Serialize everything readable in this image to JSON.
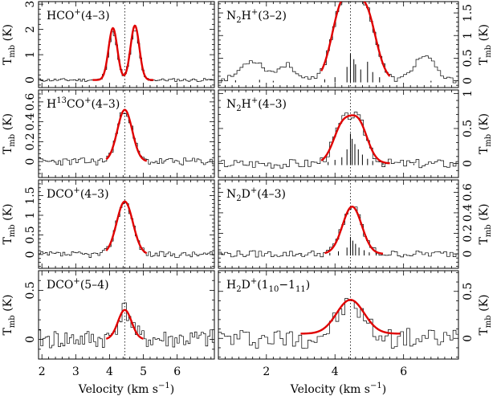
{
  "chart_data": {
    "type": "line",
    "xlabel": "Velocity (km s",
    "xlabel_sup": "−1",
    "xlabel_close": ")",
    "ylabel_main": "T",
    "ylabel_sub": "mb",
    "ylabel_unit": " (K)",
    "systemic_velocity": 4.45,
    "columns": [
      {
        "xlim": [
          1.9,
          7.1
        ],
        "xticks": [
          2,
          3,
          4,
          5,
          6
        ],
        "panels": [
          {
            "id": "hco-4-3",
            "label": {
              "base": "HCO",
              "sup": "+",
              "rest": "(4–3)"
            },
            "ylim": [
              -0.3,
              3.1
            ],
            "yticks": [
              0,
              1,
              2,
              3
            ],
            "y_label_side": "left",
            "fit": {
              "components": [
                [
                  2.05,
                  4.1,
                  0.13
                ],
                [
                  2.15,
                  4.75,
                  0.13
                ]
              ],
              "x_range": [
                3.5,
                5.3
              ]
            },
            "noise": 0.06,
            "seed": 11,
            "hyperfine": []
          },
          {
            "id": "h13co-4-3",
            "label": {
              "base": "H",
              "presup": "13",
              "mid": "CO",
              "sup": "+",
              "rest": "(4–3)"
            },
            "ylim": [
              -0.16,
              0.72
            ],
            "yticks": [
              0,
              0.2,
              0.4,
              0.6
            ],
            "y_label_side": "left",
            "fit": {
              "components": [
                [
                  0.52,
                  4.45,
                  0.22
                ]
              ],
              "x_range": [
                3.9,
                5.1
              ]
            },
            "noise": 0.035,
            "seed": 23,
            "hyperfine": []
          },
          {
            "id": "dco-4-3",
            "label": {
              "base": "DCO",
              "sup": "+",
              "rest": "(4–3)"
            },
            "ylim": [
              -0.35,
              1.9
            ],
            "yticks": [
              0,
              0.5,
              1,
              1.5
            ],
            "y_label_side": "left",
            "fit": {
              "components": [
                [
                  1.35,
                  4.45,
                  0.24
                ]
              ],
              "x_range": [
                3.9,
                5.1
              ]
            },
            "noise": 0.07,
            "seed": 37,
            "hyperfine": []
          },
          {
            "id": "dco-5-4",
            "label": {
              "base": "DCO",
              "sup": "+",
              "rest": "(5–4)"
            },
            "ylim": [
              -0.2,
              0.7
            ],
            "yticks": [
              0,
              0.5
            ],
            "y_label_side": "left",
            "fit": {
              "components": [
                [
                  0.3,
                  4.45,
                  0.2
                ]
              ],
              "x_range": [
                3.9,
                5.0
              ]
            },
            "noise": 0.09,
            "seed": 41,
            "hyperfine": []
          }
        ]
      },
      {
        "xlim": [
          0.6,
          7.6
        ],
        "xticks": [
          2,
          4,
          6
        ],
        "panels": [
          {
            "id": "n2h-3-2",
            "label": {
              "base": "N",
              "sub": "2",
              "mid": "H",
              "sup": "+",
              "rest": "(3–2)"
            },
            "ylim": [
              -0.15,
              1.75
            ],
            "yticks": [
              0,
              0.5,
              1,
              1.5
            ],
            "y_label_side": "right",
            "fit": {
              "components": [
                [
                  1.4,
                  4.2,
                  0.3
                ],
                [
                  1.3,
                  4.9,
                  0.3
                ],
                [
                  0.45,
                  4.55,
                  0.4
                ]
              ],
              "x_range": [
                3.6,
                5.6
              ]
            },
            "noise": 0.05,
            "seed": 53,
            "side_bumps": [
              [
                0.45,
                1.6,
                0.35
              ],
              [
                0.35,
                2.6,
                0.25
              ],
              [
                0.55,
                6.6,
                0.3
              ]
            ],
            "hyperfine": [
              [
                1.1,
                0.04
              ],
              [
                1.8,
                0.05
              ],
              [
                2.2,
                0.03
              ],
              [
                3.7,
                0.06
              ],
              [
                4.0,
                0.1
              ],
              [
                4.35,
                0.3
              ],
              [
                4.45,
                0.55
              ],
              [
                4.55,
                0.45
              ],
              [
                4.6,
                0.35
              ],
              [
                4.75,
                0.25
              ],
              [
                4.95,
                0.4
              ],
              [
                5.1,
                0.2
              ],
              [
                5.3,
                0.1
              ],
              [
                6.8,
                0.03
              ]
            ]
          },
          {
            "id": "n2h-4-3",
            "label": {
              "base": "N",
              "sub": "2",
              "mid": "H",
              "sup": "+",
              "rest": "(4–3)"
            },
            "ylim": [
              -0.2,
              1.05
            ],
            "yticks": [
              0,
              0.5,
              1
            ],
            "y_label_side": "right",
            "fit": {
              "components": [
                [
                  0.38,
                  4.2,
                  0.25
                ],
                [
                  0.42,
                  4.7,
                  0.25
                ],
                [
                  0.2,
                  4.45,
                  0.4
                ]
              ],
              "x_range": [
                3.6,
                5.6
              ]
            },
            "noise": 0.06,
            "seed": 67,
            "hyperfine": [
              [
                3.8,
                0.06
              ],
              [
                4.0,
                0.1
              ],
              [
                4.2,
                0.15
              ],
              [
                4.35,
                0.3
              ],
              [
                4.45,
                0.6
              ],
              [
                4.5,
                0.5
              ],
              [
                4.58,
                0.4
              ],
              [
                4.68,
                0.3
              ],
              [
                4.8,
                0.2
              ],
              [
                4.95,
                0.12
              ],
              [
                5.1,
                0.08
              ],
              [
                5.4,
                0.05
              ],
              [
                6.3,
                0.03
              ]
            ]
          },
          {
            "id": "n2d-4-3",
            "label": {
              "base": "N",
              "sub": "2",
              "mid": "D",
              "sup": "+",
              "rest": "(4–3)"
            },
            "ylim": [
              -0.14,
              0.72
            ],
            "yticks": [
              0,
              0.2,
              0.4,
              0.6
            ],
            "y_label_side": "right",
            "fit": {
              "components": [
                [
                  0.46,
                  4.5,
                  0.28
                ]
              ],
              "x_range": [
                3.7,
                5.4
              ]
            },
            "noise": 0.03,
            "seed": 79,
            "hyperfine": [
              [
                3.0,
                0.02
              ],
              [
                3.85,
                0.05
              ],
              [
                4.1,
                0.08
              ],
              [
                4.35,
                0.15
              ],
              [
                4.45,
                0.35
              ],
              [
                4.52,
                0.28
              ],
              [
                4.6,
                0.22
              ],
              [
                4.7,
                0.15
              ],
              [
                4.85,
                0.1
              ],
              [
                5.0,
                0.06
              ],
              [
                5.2,
                0.04
              ],
              [
                6.0,
                0.02
              ]
            ]
          },
          {
            "id": "h2d-110-111",
            "label": {
              "base": "H",
              "sub": "2",
              "mid": "D",
              "sup": "+",
              "rest_open": "(1",
              "sub_a": "10",
              "rest_mid": "−1",
              "sub_b": "11",
              "rest_close": ")"
            },
            "ylim": [
              -0.22,
              0.72
            ],
            "yticks": [
              0,
              0.5
            ],
            "y_label_side": "right",
            "fit": {
              "components": [
                [
                  0.36,
                  4.45,
                  0.4
                ]
              ],
              "baseline": 0.05,
              "x_range": [
                3.0,
                5.9
              ]
            },
            "noise": 0.1,
            "seed": 97,
            "hyperfine": []
          }
        ]
      }
    ]
  }
}
